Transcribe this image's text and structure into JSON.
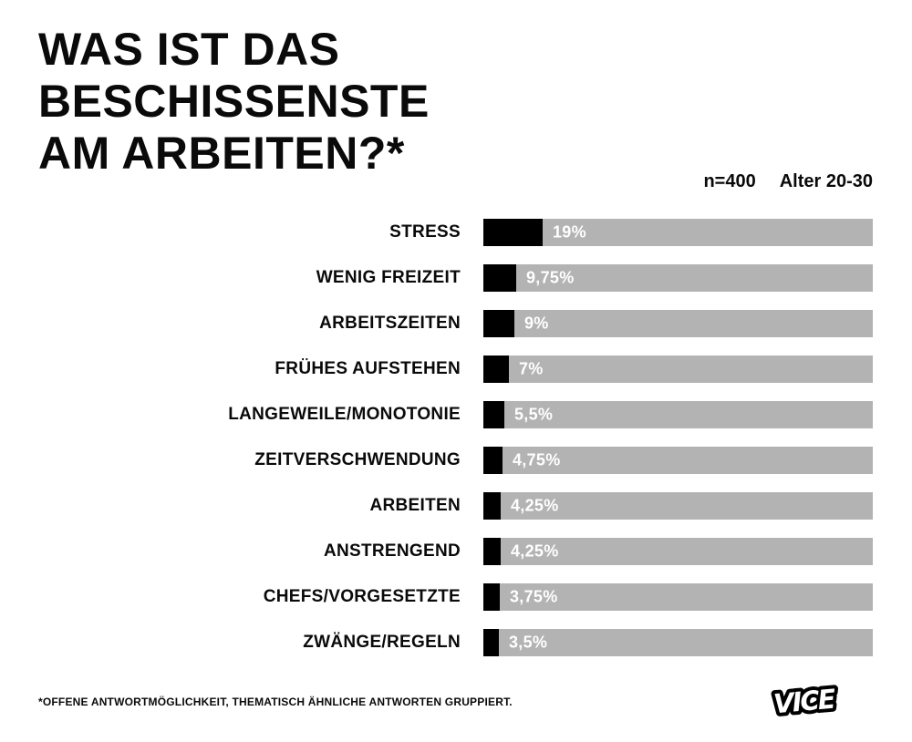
{
  "header": {
    "title_lines": [
      "WAS IST DAS",
      "BESCHISSENSTE",
      "AM ARBEITEN?*"
    ],
    "sample_size": "n=400",
    "age_group": "Alter 20-30"
  },
  "chart_data": {
    "type": "bar",
    "orientation": "horizontal",
    "title": "WAS IST DAS BESCHISSENSTE AM ARBEITEN?*",
    "subtitle": "n=400 Alter 20-30",
    "categories": [
      "STRESS",
      "WENIG FREIZEIT",
      "ARBEITSZEITEN",
      "FRÜHES AUFSTEHEN",
      "LANGEWEILE/MONOTONIE",
      "ZEITVERSCHWENDUNG",
      "ARBEITEN",
      "ANSTRENGEND",
      "CHEFS/VORGESETZTE",
      "ZWÄNGE/REGELN"
    ],
    "values": [
      19,
      9.75,
      9,
      7,
      5.5,
      4.75,
      4.25,
      4.25,
      3.75,
      3.5
    ],
    "value_labels": [
      "19%",
      "9,75%",
      "9%",
      "7%",
      "5,5%",
      "4,75%",
      "4,25%",
      "4,25%",
      "3,75%",
      "3,5%"
    ],
    "xlim": [
      0,
      100
    ],
    "legend": "none",
    "grid": "off",
    "colors": {
      "fill": "#000000",
      "track": "#b3b3b3",
      "value_text": "#ffffff",
      "text": "#0a0a0a",
      "background": "#ffffff"
    }
  },
  "footer": {
    "footnote": "*OFFENE ANTWORTMÖGLICHKEIT, THEMATISCH ÄHNLICHE ANTWORTEN GRUPPIERT.",
    "brand": "VICE"
  }
}
